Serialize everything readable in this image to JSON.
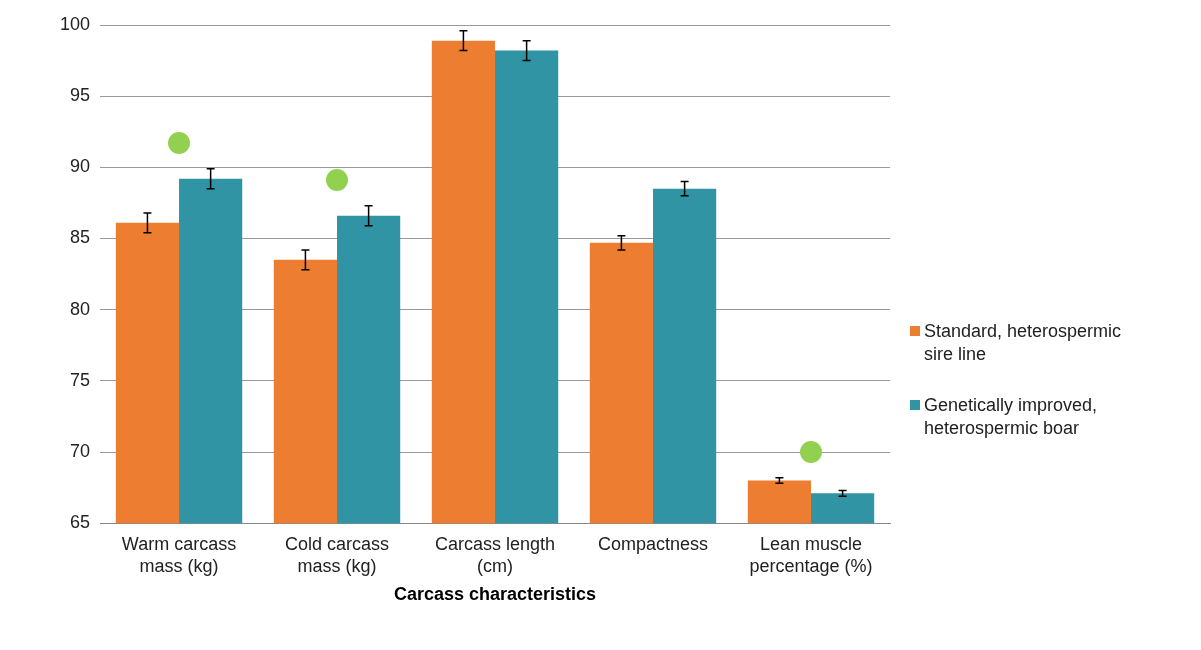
{
  "chart_data": {
    "type": "bar",
    "xlabel": "Carcass characteristics",
    "categories": [
      "Warm carcass mass (kg)",
      "Cold carcass mass (kg)",
      "Carcass length (cm)",
      "Compactness",
      "Lean muscle percentage (%)"
    ],
    "series": [
      {
        "name": "Standard, heterospermic sire line",
        "color": "#ed7d31",
        "values": [
          86.1,
          83.5,
          98.9,
          84.7,
          68.0
        ],
        "errors": [
          0.7,
          0.7,
          0.7,
          0.5,
          0.2
        ]
      },
      {
        "name": "Genetically improved, heterospermic boar",
        "color": "#3094a5",
        "values": [
          89.2,
          86.6,
          98.2,
          88.5,
          67.1
        ],
        "errors": [
          0.7,
          0.7,
          0.7,
          0.5,
          0.2
        ]
      }
    ],
    "ylim": [
      65,
      100
    ],
    "yticks": [
      65,
      70,
      75,
      80,
      85,
      90,
      95,
      100
    ],
    "grid": "y",
    "legend": "right"
  }
}
